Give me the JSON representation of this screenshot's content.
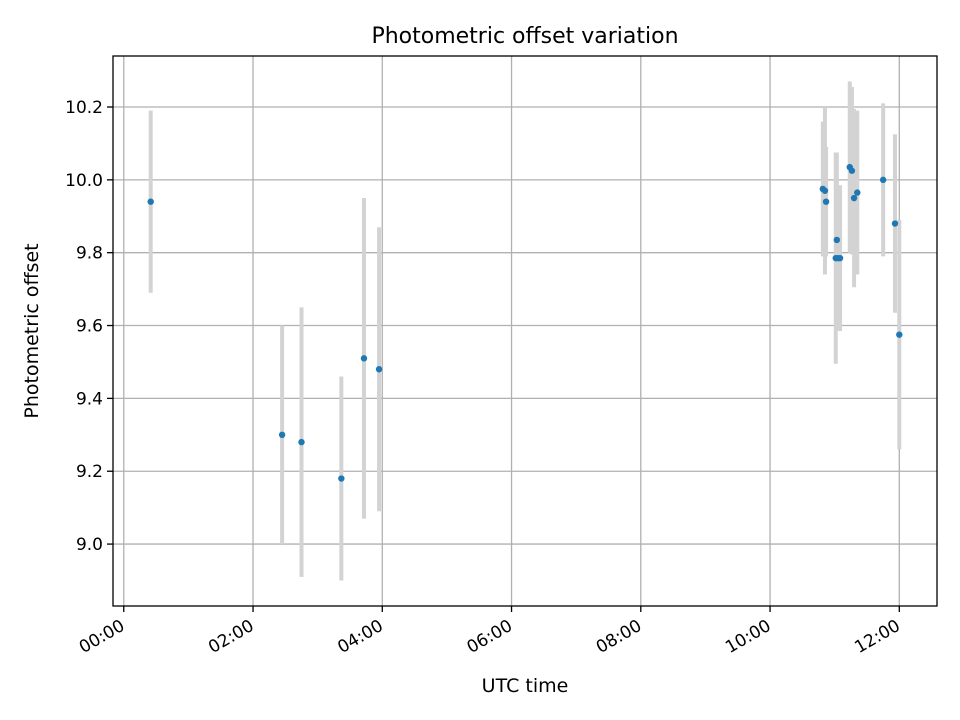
{
  "chart_data": {
    "type": "scatter",
    "title": "Photometric offset variation",
    "xlabel": "UTC time",
    "ylabel": "Photometric offset",
    "x_ticks": [
      "00:00",
      "02:00",
      "04:00",
      "06:00",
      "08:00",
      "10:00",
      "12:00"
    ],
    "y_ticks": [
      "9.0",
      "9.2",
      "9.4",
      "9.6",
      "9.8",
      "10.0",
      "10.2"
    ],
    "xlim": [
      "23:50",
      "12:35"
    ],
    "ylim": [
      8.83,
      10.34
    ],
    "grid": true,
    "legend": "none",
    "colors": {
      "marker": "#1f77b4",
      "errorbar": "#d3d3d3",
      "grid": "#b0b0b0"
    },
    "series": [
      {
        "points": [
          {
            "x": "00:25",
            "y": 9.94,
            "err": 0.25
          },
          {
            "x": "02:27",
            "y": 9.3,
            "err": 0.3
          },
          {
            "x": "02:45",
            "y": 9.28,
            "err": 0.37
          },
          {
            "x": "03:22",
            "y": 9.18,
            "err": 0.28
          },
          {
            "x": "03:43",
            "y": 9.51,
            "err": 0.44
          },
          {
            "x": "03:57",
            "y": 9.48,
            "err": 0.39
          },
          {
            "x": "10:49",
            "y": 9.975,
            "err": 0.185
          },
          {
            "x": "10:51",
            "y": 9.97,
            "err": 0.23
          },
          {
            "x": "10:52",
            "y": 9.94,
            "err": 0.15
          },
          {
            "x": "11:01",
            "y": 9.785,
            "err": 0.29
          },
          {
            "x": "11:02",
            "y": 9.835,
            "err": 0.24
          },
          {
            "x": "11:03",
            "y": 9.785,
            "err": 0.2
          },
          {
            "x": "11:05",
            "y": 9.785,
            "err": 0.2
          },
          {
            "x": "11:14",
            "y": 10.035,
            "err": 0.235
          },
          {
            "x": "11:16",
            "y": 10.025,
            "err": 0.23
          },
          {
            "x": "11:18",
            "y": 9.95,
            "err": 0.245
          },
          {
            "x": "11:21",
            "y": 9.965,
            "err": 0.225
          },
          {
            "x": "11:45",
            "y": 10.0,
            "err": 0.21
          },
          {
            "x": "11:56",
            "y": 9.88,
            "err": 0.245
          },
          {
            "x": "12:00",
            "y": 9.575,
            "err": 0.315
          }
        ]
      }
    ]
  }
}
